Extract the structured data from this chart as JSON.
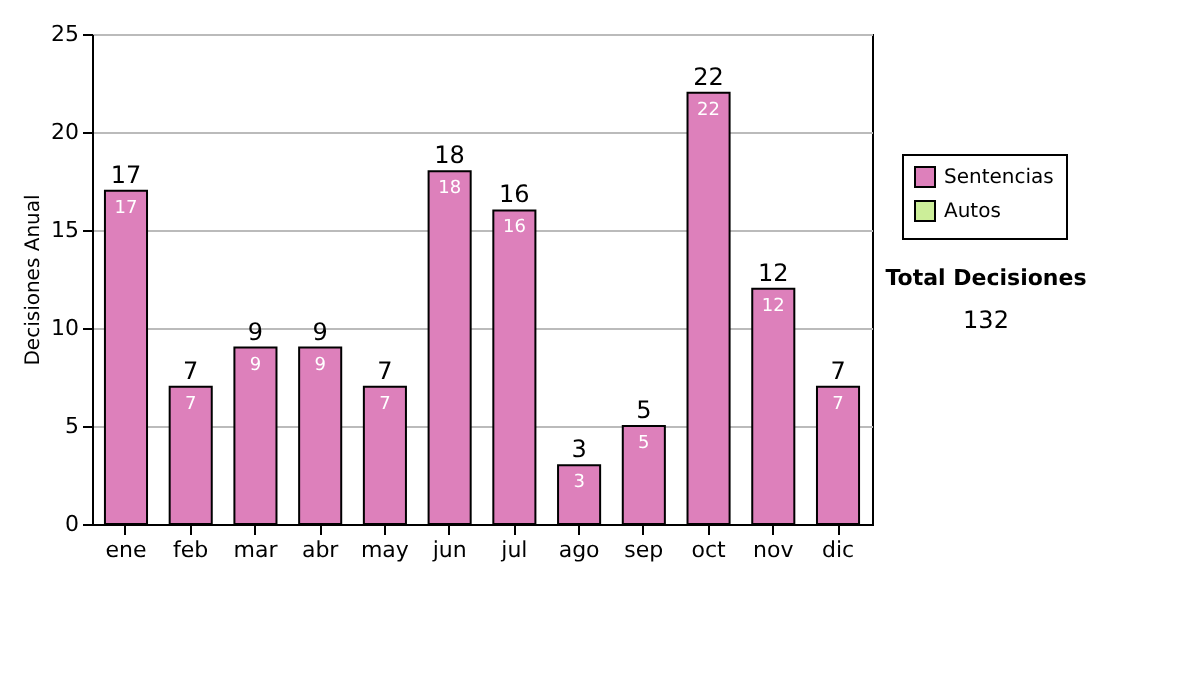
{
  "chart_data": {
    "type": "bar",
    "ylabel": "Decisiones Anual",
    "stacked": true,
    "categories": [
      "ene",
      "feb",
      "mar",
      "abr",
      "may",
      "jun",
      "jul",
      "ago",
      "sep",
      "oct",
      "nov",
      "dic"
    ],
    "series": [
      {
        "name": "Sentencias",
        "color": "#dd80bb",
        "values": [
          17,
          7,
          9,
          9,
          7,
          18,
          16,
          3,
          5,
          22,
          12,
          7
        ]
      },
      {
        "name": "Autos",
        "color": "#ccee99",
        "values": [
          null,
          null,
          null,
          null,
          null,
          null,
          null,
          null,
          null,
          null,
          null,
          null
        ]
      }
    ],
    "totals": [
      "17",
      "7",
      "9",
      "9",
      "7",
      "18",
      "16",
      "3",
      "5",
      "22",
      "12",
      "7"
    ],
    "data_labels": true,
    "ylim": [
      0,
      25
    ],
    "yticks": [
      0,
      5,
      10,
      15,
      20,
      25
    ],
    "grid": "y",
    "legend": "right",
    "annotations": [
      "Total Decisiones",
      "132"
    ]
  }
}
